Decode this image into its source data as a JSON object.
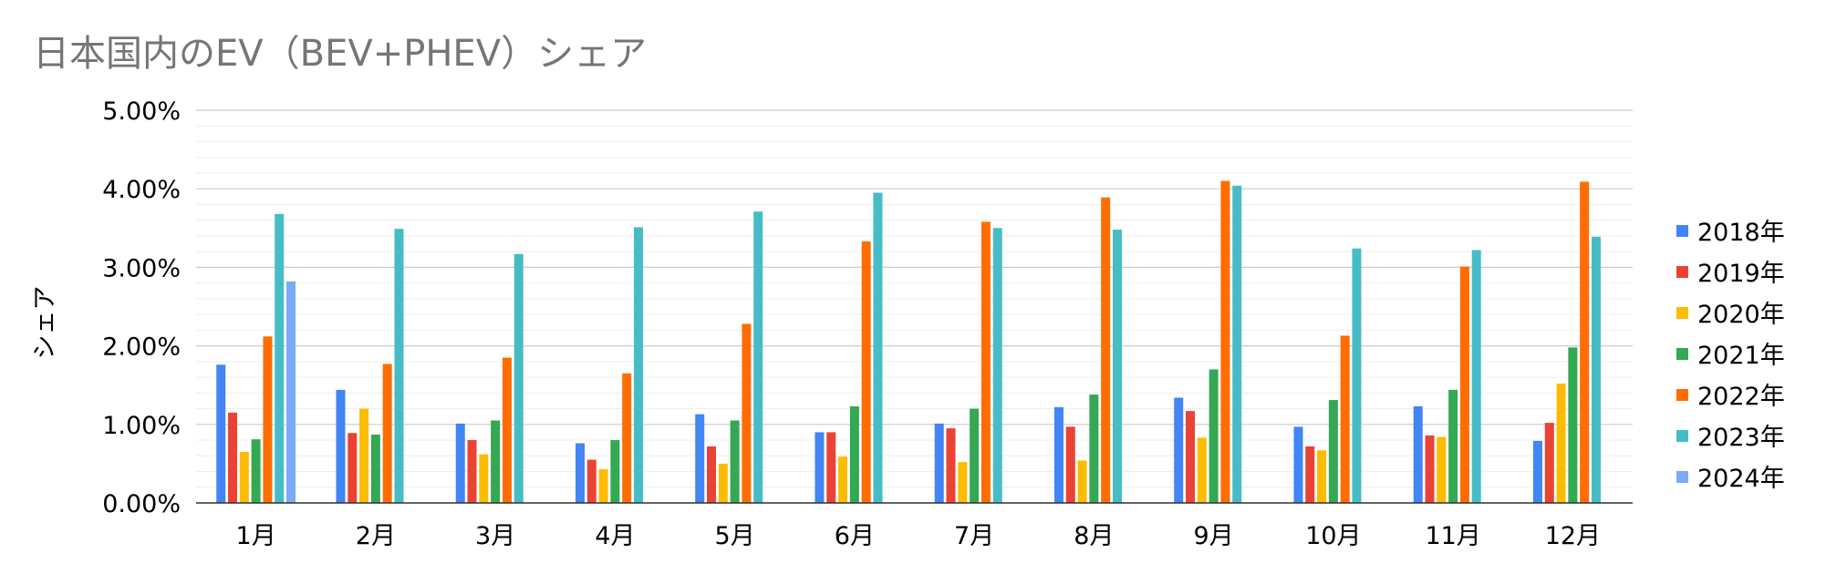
{
  "chart_data": {
    "type": "bar",
    "title": "日本国内のEV（BEV+PHEV）シェア",
    "xlabel": "",
    "ylabel": "シェア",
    "ylim": [
      0,
      0.05
    ],
    "yticks": [
      "0.00%",
      "1.00%",
      "2.00%",
      "3.00%",
      "4.00%",
      "5.00%"
    ],
    "grid": true,
    "legend_position": "right",
    "categories": [
      "1月",
      "2月",
      "3月",
      "4月",
      "5月",
      "6月",
      "7月",
      "8月",
      "9月",
      "10月",
      "11月",
      "12月"
    ],
    "series": [
      {
        "name": "2018年",
        "color": "#4285f4",
        "values": [
          0.0176,
          0.0144,
          0.0101,
          0.0076,
          0.0113,
          0.009,
          0.0101,
          0.0122,
          0.0134,
          0.0097,
          0.0123,
          0.0079
        ]
      },
      {
        "name": "2019年",
        "color": "#ea4335",
        "values": [
          0.0115,
          0.0089,
          0.008,
          0.0055,
          0.0072,
          0.009,
          0.0095,
          0.0097,
          0.0117,
          0.0072,
          0.0086,
          0.0102
        ]
      },
      {
        "name": "2020年",
        "color": "#fbbc04",
        "values": [
          0.0065,
          0.012,
          0.0062,
          0.0043,
          0.005,
          0.0059,
          0.0052,
          0.0054,
          0.0083,
          0.0067,
          0.0084,
          0.0152
        ]
      },
      {
        "name": "2021年",
        "color": "#34a853",
        "values": [
          0.0081,
          0.0087,
          0.0105,
          0.008,
          0.0105,
          0.0123,
          0.012,
          0.0138,
          0.017,
          0.0131,
          0.0144,
          0.0198
        ]
      },
      {
        "name": "2022年",
        "color": "#ff6d01",
        "values": [
          0.0212,
          0.0177,
          0.0185,
          0.0165,
          0.0228,
          0.0333,
          0.0358,
          0.0389,
          0.041,
          0.0213,
          0.0301,
          0.0409
        ]
      },
      {
        "name": "2023年",
        "color": "#46bdc6",
        "values": [
          0.0368,
          0.0349,
          0.0317,
          0.0351,
          0.0371,
          0.0395,
          0.035,
          0.0348,
          0.0404,
          0.0324,
          0.0322,
          0.0339
        ]
      },
      {
        "name": "2024年",
        "color": "#7baaf7",
        "values": [
          0.0282,
          null,
          null,
          null,
          null,
          null,
          null,
          null,
          null,
          null,
          null,
          null
        ]
      }
    ]
  }
}
